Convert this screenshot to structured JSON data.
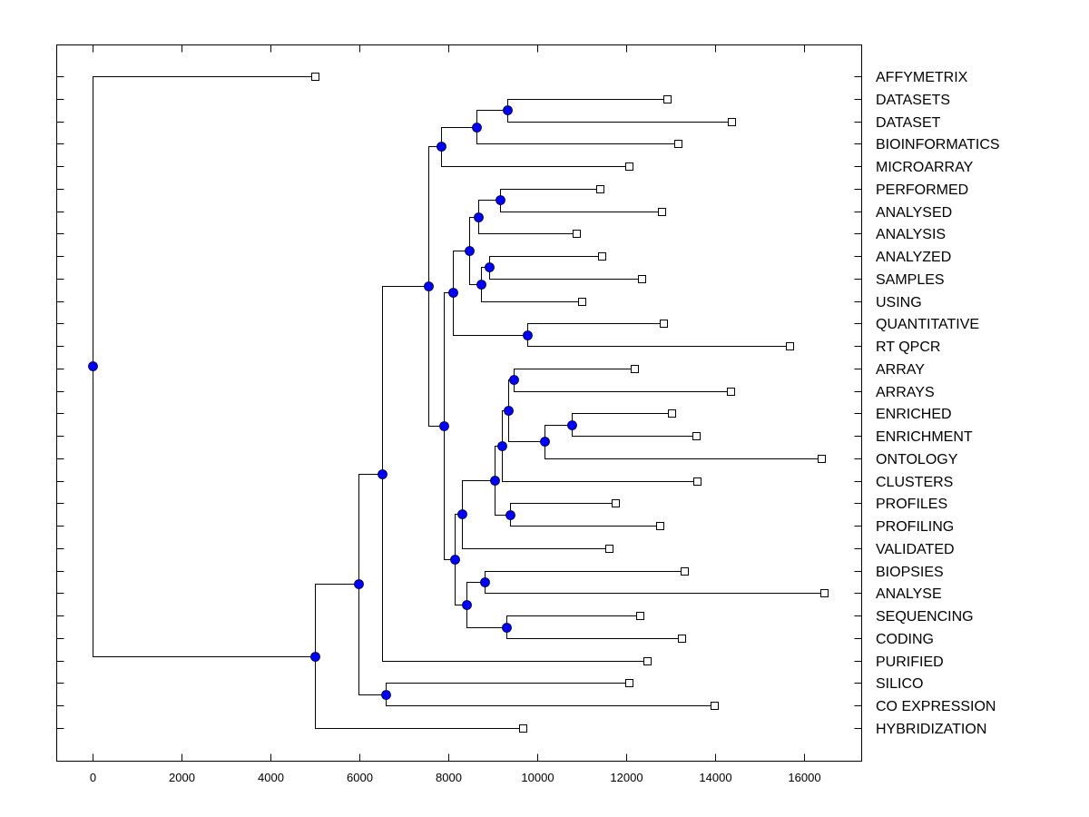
{
  "chart_data": {
    "type": "dendrogram",
    "title": "",
    "xlabel": "",
    "ylabel": "",
    "xlim": [
      -800,
      17200
    ],
    "xticks": [
      0,
      2000,
      4000,
      6000,
      8000,
      10000,
      12000,
      14000,
      16000
    ],
    "xtick_labels": [
      "0",
      "2000",
      "4000",
      "6000",
      "8000",
      "10000",
      "12000",
      "14000",
      "16000"
    ],
    "grid": false,
    "label_side": "right",
    "colors": {
      "node": "#0000ff",
      "line": "#000000",
      "leaf_fill": "#ffffff"
    },
    "leaves": [
      {
        "label": "AFFYMETRIX",
        "x": 5000
      },
      {
        "label": "DATASETS",
        "x": 12920
      },
      {
        "label": "DATASET",
        "x": 14370
      },
      {
        "label": "BIOINFORMATICS",
        "x": 13160
      },
      {
        "label": "MICROARRAY",
        "x": 12060
      },
      {
        "label": "PERFORMED",
        "x": 11410
      },
      {
        "label": "ANALYSED",
        "x": 12800
      },
      {
        "label": "ANALYSIS",
        "x": 10880
      },
      {
        "label": "ANALYZED",
        "x": 11450
      },
      {
        "label": "SAMPLES",
        "x": 12350
      },
      {
        "label": "USING",
        "x": 11000
      },
      {
        "label": "QUANTITATIVE",
        "x": 12840
      },
      {
        "label": "RT QPCR",
        "x": 15670
      },
      {
        "label": "ARRAY",
        "x": 12180
      },
      {
        "label": "ARRAYS",
        "x": 14350
      },
      {
        "label": "ENRICHED",
        "x": 13020
      },
      {
        "label": "ENRICHMENT",
        "x": 13570
      },
      {
        "label": "ONTOLOGY",
        "x": 16390
      },
      {
        "label": "CLUSTERS",
        "x": 13590
      },
      {
        "label": "PROFILES",
        "x": 11760
      },
      {
        "label": "PROFILING",
        "x": 12760
      },
      {
        "label": "VALIDATED",
        "x": 11610
      },
      {
        "label": "BIOPSIES",
        "x": 13310
      },
      {
        "label": "ANALYSE",
        "x": 16450
      },
      {
        "label": "SEQUENCING",
        "x": 12310
      },
      {
        "label": "CODING",
        "x": 13250
      },
      {
        "label": "PURIFIED",
        "x": 12470
      },
      {
        "label": "SILICO",
        "x": 12060
      },
      {
        "label": "CO EXPRESSION",
        "x": 13980
      },
      {
        "label": "HYBRIDIZATION",
        "x": 9670
      }
    ],
    "merges": [
      {
        "id": "n1",
        "x": 9330,
        "children": [
          "L1",
          "L2"
        ]
      },
      {
        "id": "n2",
        "x": 8630,
        "children": [
          "n1",
          "L3"
        ]
      },
      {
        "id": "n3",
        "x": 7840,
        "children": [
          "n2",
          "L4"
        ]
      },
      {
        "id": "n4",
        "x": 9160,
        "children": [
          "L5",
          "L6"
        ]
      },
      {
        "id": "n5",
        "x": 8670,
        "children": [
          "n4",
          "L7"
        ]
      },
      {
        "id": "n6",
        "x": 8920,
        "children": [
          "L8",
          "L9"
        ]
      },
      {
        "id": "n7",
        "x": 8730,
        "children": [
          "n6",
          "L10"
        ]
      },
      {
        "id": "n8",
        "x": 8470,
        "children": [
          "n5",
          "n7"
        ]
      },
      {
        "id": "n9",
        "x": 9780,
        "children": [
          "L11",
          "L12"
        ]
      },
      {
        "id": "n10",
        "x": 8100,
        "children": [
          "n8",
          "n9"
        ]
      },
      {
        "id": "n11",
        "x": 9470,
        "children": [
          "L13",
          "L14"
        ]
      },
      {
        "id": "n12",
        "x": 10780,
        "children": [
          "L15",
          "L16"
        ]
      },
      {
        "id": "n13",
        "x": 10160,
        "children": [
          "n12",
          "L17"
        ]
      },
      {
        "id": "n14",
        "x": 9350,
        "children": [
          "n11",
          "n13"
        ]
      },
      {
        "id": "n15",
        "x": 9200,
        "children": [
          "n14",
          "L18"
        ]
      },
      {
        "id": "n16",
        "x": 9390,
        "children": [
          "L19",
          "L20"
        ]
      },
      {
        "id": "n17",
        "x": 9040,
        "children": [
          "n15",
          "n16"
        ]
      },
      {
        "id": "n18",
        "x": 8310,
        "children": [
          "n17",
          "L21"
        ]
      },
      {
        "id": "n19",
        "x": 8820,
        "children": [
          "L22",
          "L23"
        ]
      },
      {
        "id": "n20",
        "x": 9310,
        "children": [
          "L24",
          "L25"
        ]
      },
      {
        "id": "n21",
        "x": 8410,
        "children": [
          "n19",
          "n20"
        ]
      },
      {
        "id": "n22",
        "x": 8140,
        "children": [
          "n18",
          "n21"
        ]
      },
      {
        "id": "n23",
        "x": 7900,
        "children": [
          "n10",
          "n22"
        ]
      },
      {
        "id": "n24",
        "x": 7550,
        "children": [
          "n3",
          "n23"
        ]
      },
      {
        "id": "n25",
        "x": 6510,
        "children": [
          "n24",
          "L26"
        ]
      },
      {
        "id": "n26",
        "x": 6590,
        "children": [
          "L27",
          "L28"
        ]
      },
      {
        "id": "n27",
        "x": 5980,
        "children": [
          "n25",
          "n26"
        ]
      },
      {
        "id": "n28",
        "x": 5000,
        "children": [
          "n27",
          "L29"
        ]
      },
      {
        "id": "n29",
        "x": 0,
        "children": [
          "L0",
          "n28"
        ]
      }
    ]
  }
}
